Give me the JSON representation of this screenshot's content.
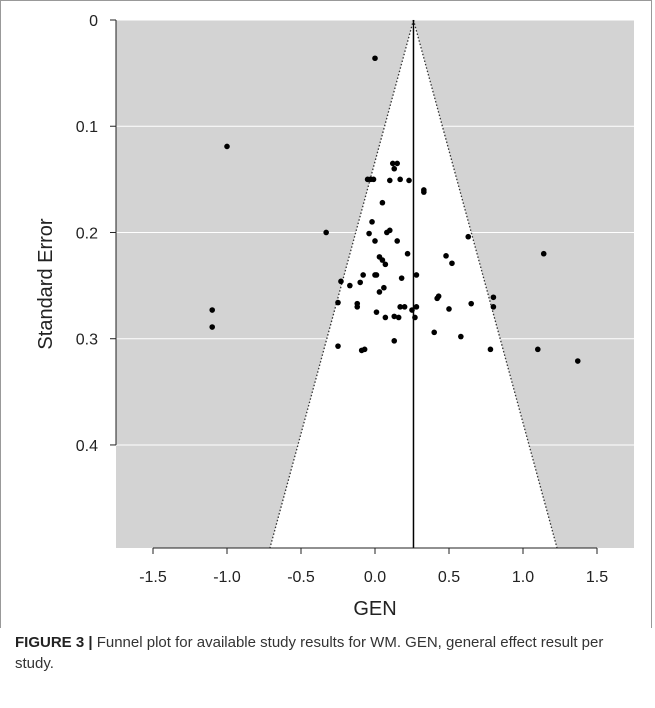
{
  "figure": {
    "label": "FIGURE 3 |",
    "caption": " Funnel plot for available study results for WM. GEN, general effect result per study."
  },
  "colors": {
    "panel": "#d3d3d3",
    "funnel": "#ffffff",
    "points": "#000000",
    "grid": "#ffffff"
  },
  "chart_data": {
    "type": "scatter",
    "title": "",
    "xlabel": "GEN",
    "ylabel": "Standard Error",
    "xlim": [
      -1.75,
      1.75
    ],
    "ylim": [
      0.0,
      0.497
    ],
    "y_reversed": true,
    "grid": "horizontal",
    "xticks": [
      -1.5,
      -1.0,
      -0.5,
      0.0,
      0.5,
      1.0,
      1.5
    ],
    "xtick_labels": [
      "-1.5",
      "-1.0",
      "-0.5",
      "0.0",
      "0.5",
      "1.0",
      "1.5"
    ],
    "yticks": [
      0,
      0.1,
      0.2,
      0.3,
      0.4
    ],
    "ytick_labels": [
      "0",
      "0.1",
      "0.2",
      "0.3",
      "0.4"
    ],
    "summary_effect": 0.26,
    "funnel_apex": [
      0.26,
      0.0
    ],
    "funnel_base": [
      -0.71,
      1.23
    ],
    "series": [
      {
        "x": [
          0.0,
          -1.0,
          -1.1,
          -1.1,
          -0.33,
          -0.05,
          -0.03,
          -0.01,
          0.12,
          0.13,
          0.15,
          0.17,
          0.1,
          0.23,
          0.33,
          0.33,
          0.05,
          -0.02,
          0.0,
          0.08,
          0.1,
          -0.04,
          0.03,
          0.05,
          0.07,
          0.15,
          0.63,
          0.48,
          0.52,
          1.14,
          0.22,
          -0.08,
          0.0,
          0.01,
          0.18,
          0.28,
          -0.23,
          -0.25,
          0.06,
          -0.17,
          0.42,
          0.43,
          0.5,
          0.65,
          0.8,
          0.8,
          -0.12,
          -0.12,
          -0.1,
          0.07,
          0.17,
          0.25,
          0.28,
          0.13,
          0.16,
          0.13,
          0.4,
          0.58,
          -0.25,
          -0.07,
          -0.09,
          0.78,
          1.1,
          1.37,
          0.27,
          0.2,
          0.03,
          0.01
        ],
        "y": [
          0.036,
          0.119,
          0.273,
          0.289,
          0.2,
          0.15,
          0.15,
          0.15,
          0.135,
          0.14,
          0.135,
          0.15,
          0.151,
          0.151,
          0.16,
          0.162,
          0.172,
          0.19,
          0.208,
          0.2,
          0.198,
          0.201,
          0.223,
          0.226,
          0.23,
          0.208,
          0.204,
          0.222,
          0.229,
          0.22,
          0.22,
          0.24,
          0.24,
          0.24,
          0.243,
          0.24,
          0.246,
          0.266,
          0.252,
          0.25,
          0.262,
          0.26,
          0.272,
          0.267,
          0.261,
          0.27,
          0.267,
          0.27,
          0.247,
          0.28,
          0.27,
          0.273,
          0.27,
          0.279,
          0.28,
          0.302,
          0.294,
          0.298,
          0.307,
          0.31,
          0.311,
          0.31,
          0.31,
          0.321,
          0.28,
          0.27,
          0.256,
          0.275
        ]
      }
    ]
  }
}
